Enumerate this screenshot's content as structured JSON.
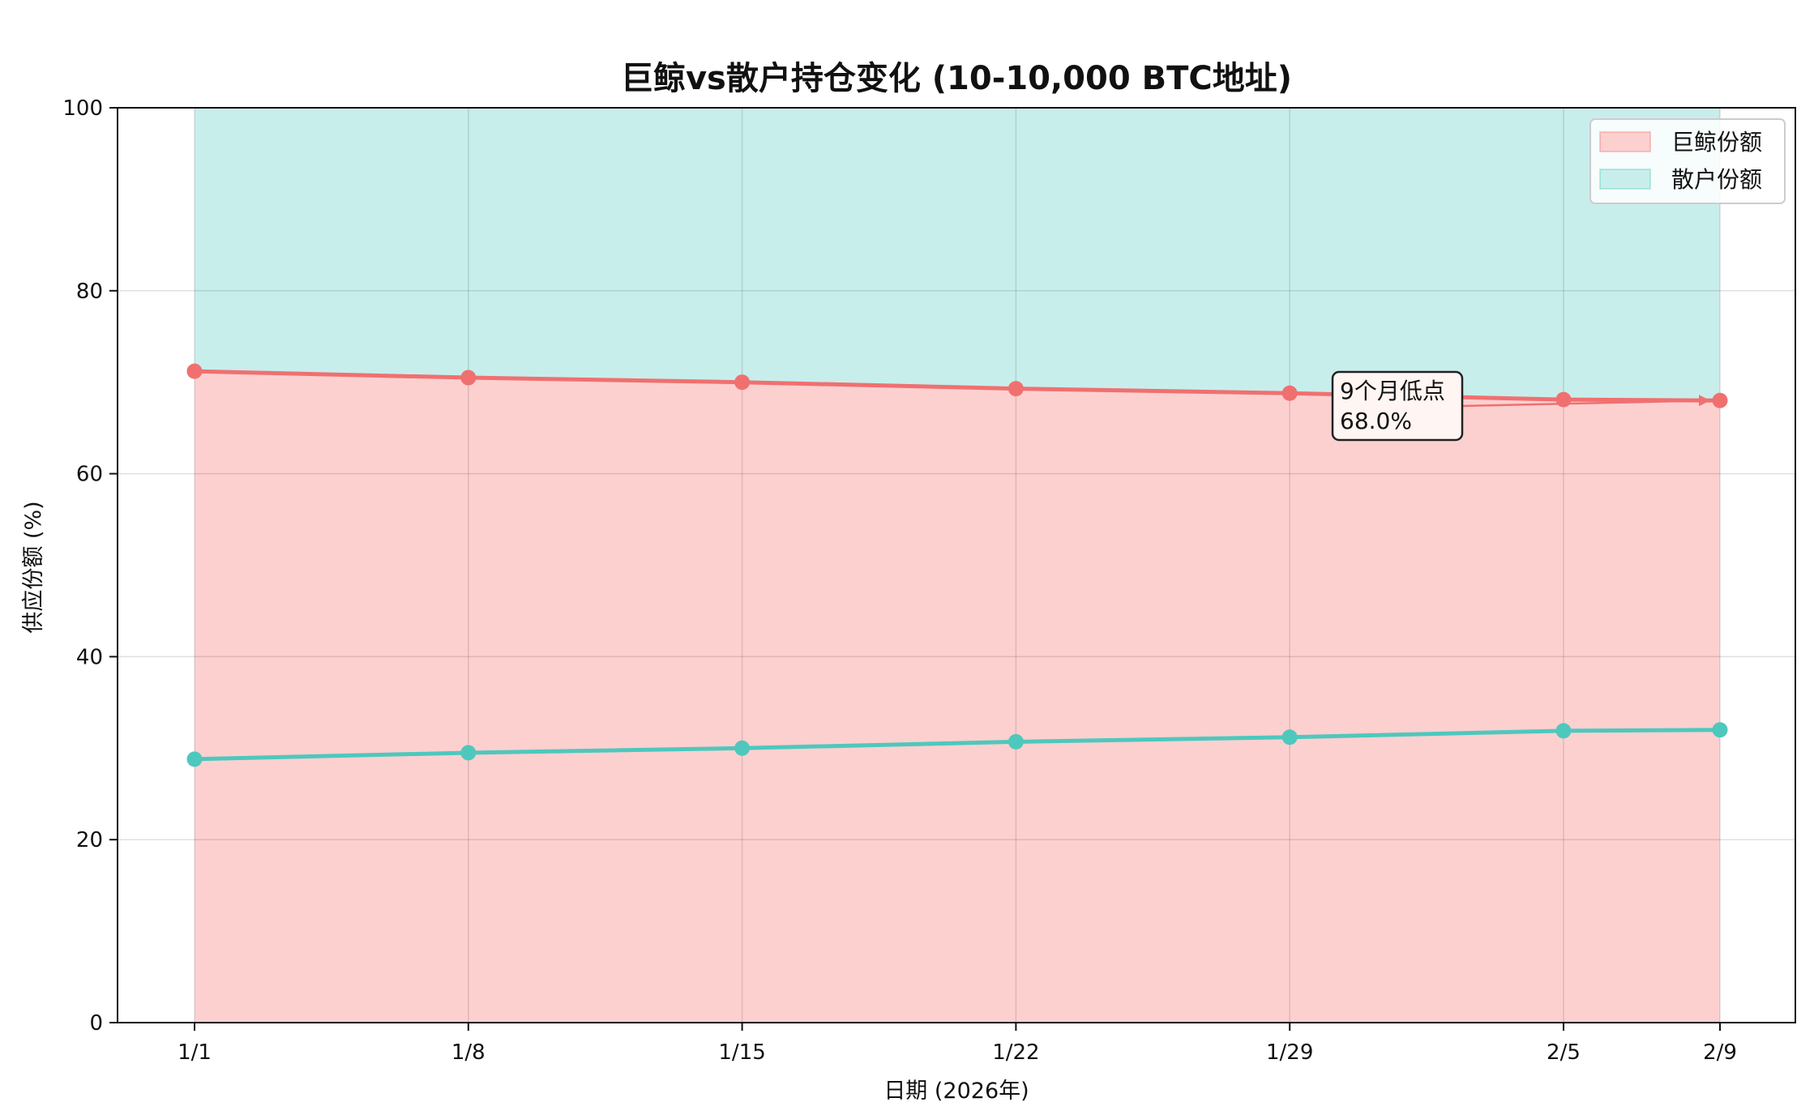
{
  "chart_data": {
    "type": "area",
    "title": "巨鲸vs散户持仓变化 (10-10,000 BTC地址)",
    "xlabel": "日期 (2026年)",
    "ylabel": "供应份额 (%)",
    "categories": [
      "1/1",
      "1/8",
      "1/15",
      "1/22",
      "1/29",
      "2/5",
      "2/9"
    ],
    "x_days": [
      0,
      7,
      14,
      21,
      28,
      35,
      39
    ],
    "ylim": [
      0,
      100
    ],
    "yticks": [
      0,
      20,
      40,
      60,
      80,
      100
    ],
    "grid": true,
    "legend_position": "top-right",
    "series": [
      {
        "name": "巨鲸份额",
        "values": [
          71.2,
          70.5,
          70.0,
          69.3,
          68.8,
          68.1,
          68.0
        ],
        "line_color": "#f07070",
        "fill_color": "#fdd0d0"
      },
      {
        "name": "散户份额",
        "values": [
          28.8,
          29.5,
          30.0,
          30.7,
          31.2,
          31.9,
          32.0
        ],
        "line_color": "#4ec8bd",
        "fill_color": "#c8eeec"
      }
    ],
    "annotation": {
      "line1": "9个月低点",
      "line2": "68.0%",
      "target_series": 0,
      "target_index": 6
    }
  }
}
